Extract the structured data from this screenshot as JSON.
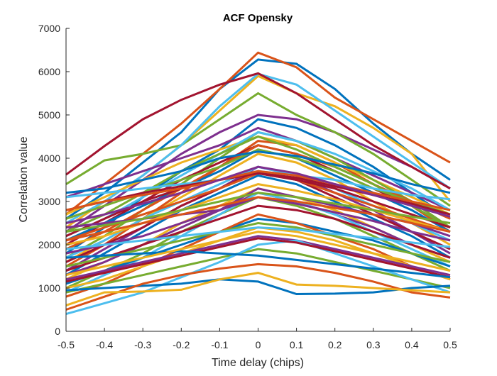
{
  "chart_data": {
    "type": "line",
    "title": "ACF Opensky",
    "xlabel": "Time delay (chips)",
    "ylabel": "Correlation value",
    "xlim": [
      -0.5,
      0.5
    ],
    "ylim": [
      0,
      7000
    ],
    "x": [
      -0.5,
      -0.4,
      -0.3,
      -0.2,
      -0.1,
      0,
      0.1,
      0.2,
      0.3,
      0.4,
      0.5
    ],
    "x_tick_labels": [
      "-0.5",
      "-0.4",
      "-0.3",
      "-0.2",
      "-0.1",
      "0",
      "0.1",
      "0.2",
      "0.3",
      "0.4",
      "0.5"
    ],
    "y_tick_labels": [
      "0",
      "1000",
      "2000",
      "3000",
      "4000",
      "5000",
      "6000",
      "7000"
    ],
    "grid": false,
    "legend": "none",
    "colors": [
      "#0072BD",
      "#D95319",
      "#EDB120",
      "#7E2F8E",
      "#77AC30",
      "#4DBEEE",
      "#A2142F"
    ],
    "series": [
      {
        "color": "#0072BD",
        "values": [
          2600,
          3200,
          3900,
          4600,
          5600,
          6280,
          6180,
          5600,
          4800,
          4100,
          3500
        ]
      },
      {
        "color": "#D95319",
        "values": [
          2700,
          3400,
          4100,
          4800,
          5600,
          6440,
          6100,
          5400,
          4900,
          4400,
          3900
        ]
      },
      {
        "color": "#EDB120",
        "values": [
          2400,
          3000,
          3600,
          4300,
          5100,
          5900,
          5500,
          5200,
          4700,
          4100,
          3000
        ]
      },
      {
        "color": "#7E2F8E",
        "values": [
          2300,
          2900,
          3500,
          4100,
          4600,
          5000,
          4900,
          4600,
          4200,
          3800,
          3300
        ]
      },
      {
        "color": "#77AC30",
        "values": [
          3400,
          3950,
          4100,
          4300,
          4900,
          5500,
          5000,
          4600,
          4100,
          3500,
          2900
        ]
      },
      {
        "color": "#4DBEEE",
        "values": [
          2500,
          3000,
          3600,
          4300,
          5200,
          5950,
          5700,
          5100,
          4500,
          3900,
          3300
        ]
      },
      {
        "color": "#A2142F",
        "values": [
          3620,
          4280,
          4900,
          5350,
          5700,
          5960,
          5500,
          4900,
          4300,
          3800,
          3300
        ]
      },
      {
        "color": "#0072BD",
        "values": [
          1800,
          2400,
          3100,
          3700,
          4200,
          4900,
          4700,
          4300,
          3800,
          3200,
          2600
        ]
      },
      {
        "color": "#D95319",
        "values": [
          1500,
          2000,
          2600,
          3200,
          3800,
          4400,
          4300,
          3900,
          3400,
          2900,
          2300
        ]
      },
      {
        "color": "#EDB120",
        "values": [
          2700,
          3100,
          3500,
          3900,
          4200,
          4500,
          4300,
          3900,
          3500,
          3100,
          2700
        ]
      },
      {
        "color": "#7E2F8E",
        "values": [
          3100,
          3400,
          3700,
          4000,
          4300,
          4700,
          4400,
          4000,
          3600,
          3200,
          2800
        ]
      },
      {
        "color": "#77AC30",
        "values": [
          1700,
          2200,
          2800,
          3400,
          4000,
          4600,
          4400,
          4000,
          3500,
          3000,
          2400
        ]
      },
      {
        "color": "#4DBEEE",
        "values": [
          2200,
          2600,
          3100,
          3600,
          4100,
          4600,
          4400,
          4100,
          3700,
          3300,
          2800
        ]
      },
      {
        "color": "#A2142F",
        "values": [
          2000,
          2500,
          3000,
          3500,
          3900,
          4300,
          4100,
          3700,
          3300,
          2900,
          2400
        ]
      },
      {
        "color": "#0072BD",
        "values": [
          2100,
          2500,
          2900,
          3300,
          3700,
          4200,
          4000,
          3600,
          3200,
          2800,
          2300
        ]
      },
      {
        "color": "#D95319",
        "values": [
          1900,
          2300,
          2800,
          3300,
          3800,
          4300,
          4100,
          3800,
          3400,
          3000,
          2600
        ]
      },
      {
        "color": "#EDB120",
        "values": [
          1600,
          2100,
          2600,
          3100,
          3600,
          4100,
          3900,
          3500,
          3000,
          2500,
          2000
        ]
      },
      {
        "color": "#7E2F8E",
        "values": [
          1400,
          1900,
          2400,
          2900,
          3300,
          3800,
          3600,
          3200,
          2800,
          2300,
          1800
        ]
      },
      {
        "color": "#77AC30",
        "values": [
          2300,
          2700,
          3200,
          3700,
          4100,
          4500,
          4200,
          3800,
          3400,
          2900,
          2400
        ]
      },
      {
        "color": "#4DBEEE",
        "values": [
          1700,
          2100,
          2600,
          3000,
          3400,
          3800,
          3600,
          3300,
          2900,
          2500,
          2100
        ]
      },
      {
        "color": "#A2142F",
        "values": [
          1600,
          2000,
          2400,
          2900,
          3300,
          3700,
          3500,
          3100,
          2700,
          2300,
          1900
        ]
      },
      {
        "color": "#0072BD",
        "values": [
          1300,
          1800,
          2300,
          2800,
          3200,
          3600,
          3400,
          3000,
          2600,
          2200,
          1700
        ]
      },
      {
        "color": "#D95319",
        "values": [
          2100,
          2400,
          2700,
          3000,
          3300,
          3650,
          3500,
          3200,
          2900,
          2600,
          2300
        ]
      },
      {
        "color": "#EDB120",
        "values": [
          1200,
          1600,
          2000,
          2500,
          2900,
          3300,
          3100,
          2800,
          2400,
          2000,
          1600
        ]
      },
      {
        "color": "#7E2F8E",
        "values": [
          1300,
          1600,
          2000,
          2400,
          2800,
          3200,
          3000,
          2700,
          2400,
          2000,
          1700
        ]
      },
      {
        "color": "#77AC30",
        "values": [
          1000,
          1400,
          1800,
          2300,
          2700,
          3100,
          2900,
          2600,
          2200,
          1800,
          1400
        ]
      },
      {
        "color": "#4DBEEE",
        "values": [
          900,
          1300,
          1700,
          2200,
          2700,
          3200,
          3000,
          2700,
          2300,
          1900,
          1500
        ]
      },
      {
        "color": "#A2142F",
        "values": [
          1400,
          1700,
          2000,
          2300,
          2600,
          2900,
          2800,
          2600,
          2300,
          2000,
          1700
        ]
      },
      {
        "color": "#0072BD",
        "values": [
          1100,
          1400,
          1700,
          2000,
          2300,
          2600,
          2500,
          2300,
          2100,
          1800,
          1500
        ]
      },
      {
        "color": "#D95319",
        "values": [
          800,
          1100,
          1500,
          1900,
          2300,
          2700,
          2500,
          2200,
          1900,
          1500,
          1200
        ]
      },
      {
        "color": "#EDB120",
        "values": [
          1000,
          1200,
          1500,
          1800,
          2100,
          2400,
          2300,
          2100,
          1800,
          1500,
          1200
        ]
      },
      {
        "color": "#7E2F8E",
        "values": [
          1200,
          1400,
          1600,
          1800,
          2000,
          2200,
          2100,
          1900,
          1700,
          1500,
          1300
        ]
      },
      {
        "color": "#77AC30",
        "values": [
          900,
          1100,
          1300,
          1500,
          1700,
          1900,
          1800,
          1600,
          1400,
          1200,
          1000
        ]
      },
      {
        "color": "#4DBEEE",
        "values": [
          400,
          650,
          900,
          1250,
          1600,
          2000,
          2100,
          1800,
          1500,
          1200,
          900
        ]
      },
      {
        "color": "#A2142F",
        "values": [
          2200,
          2600,
          3000,
          3300,
          3500,
          3650,
          3500,
          3300,
          3000,
          2700,
          2400
        ]
      },
      {
        "color": "#0072BD",
        "values": [
          950,
          1000,
          1050,
          1100,
          1200,
          1150,
          860,
          870,
          900,
          1000,
          1050
        ]
      },
      {
        "color": "#D95319",
        "values": [
          500,
          800,
          1100,
          1300,
          1450,
          1550,
          1500,
          1350,
          1150,
          900,
          780
        ]
      },
      {
        "color": "#EDB120",
        "values": [
          600,
          900,
          920,
          960,
          1200,
          1350,
          1080,
          1050,
          1000,
          950,
          900
        ]
      },
      {
        "color": "#7E2F8E",
        "values": [
          2400,
          2500,
          2600,
          2700,
          2800,
          3300,
          3100,
          2900,
          2700,
          2500,
          2200
        ]
      },
      {
        "color": "#77AC30",
        "values": [
          2600,
          2900,
          3200,
          3500,
          3800,
          4200,
          4000,
          3700,
          3300,
          3000,
          2700
        ]
      },
      {
        "color": "#4DBEEE",
        "values": [
          3100,
          3200,
          3300,
          3400,
          3500,
          3700,
          3600,
          3500,
          3300,
          3150,
          3050
        ]
      },
      {
        "color": "#A2142F",
        "values": [
          2800,
          3000,
          3200,
          3350,
          3500,
          3650,
          3550,
          3350,
          3150,
          2950,
          2700
        ]
      },
      {
        "color": "#0072BD",
        "values": [
          3200,
          3300,
          3500,
          3700,
          4000,
          4150,
          4050,
          3850,
          3650,
          3400,
          3200
        ]
      },
      {
        "color": "#D95319",
        "values": [
          2800,
          3000,
          3150,
          3300,
          3500,
          3700,
          3600,
          3400,
          3200,
          3000,
          2800
        ]
      },
      {
        "color": "#EDB120",
        "values": [
          2000,
          2200,
          2500,
          2800,
          3100,
          3400,
          3250,
          3050,
          2800,
          2550,
          2300
        ]
      },
      {
        "color": "#7E2F8E",
        "values": [
          1800,
          2000,
          2200,
          2500,
          2800,
          3100,
          2950,
          2750,
          2550,
          2300,
          2100
        ]
      },
      {
        "color": "#77AC30",
        "values": [
          1500,
          1700,
          1900,
          2100,
          2300,
          2500,
          2400,
          2200,
          2000,
          1800,
          1600
        ]
      },
      {
        "color": "#4DBEEE",
        "values": [
          1900,
          2000,
          2100,
          2200,
          2300,
          2400,
          2350,
          2250,
          2150,
          2050,
          1950
        ]
      },
      {
        "color": "#A2142F",
        "values": [
          1150,
          1350,
          1550,
          1750,
          1950,
          2150,
          2050,
          1850,
          1650,
          1450,
          1250
        ]
      },
      {
        "color": "#0072BD",
        "values": [
          1700,
          1750,
          1800,
          1850,
          1800,
          1750,
          1650,
          1550,
          1450,
          1350,
          1250
        ]
      },
      {
        "color": "#D95319",
        "values": [
          2100,
          2300,
          2500,
          2700,
          2900,
          3100,
          3000,
          2850,
          2700,
          2500,
          2300
        ]
      },
      {
        "color": "#EDB120",
        "values": [
          1300,
          1500,
          1700,
          1900,
          2100,
          2300,
          2200,
          2000,
          1800,
          1600,
          1400
        ]
      },
      {
        "color": "#7E2F8E",
        "values": [
          2500,
          2700,
          2950,
          3200,
          3500,
          3800,
          3650,
          3400,
          3150,
          2900,
          2650
        ]
      },
      {
        "color": "#77AC30",
        "values": [
          2300,
          2450,
          2600,
          2800,
          3000,
          3200,
          3100,
          2950,
          2800,
          2650,
          2500
        ]
      }
    ]
  }
}
